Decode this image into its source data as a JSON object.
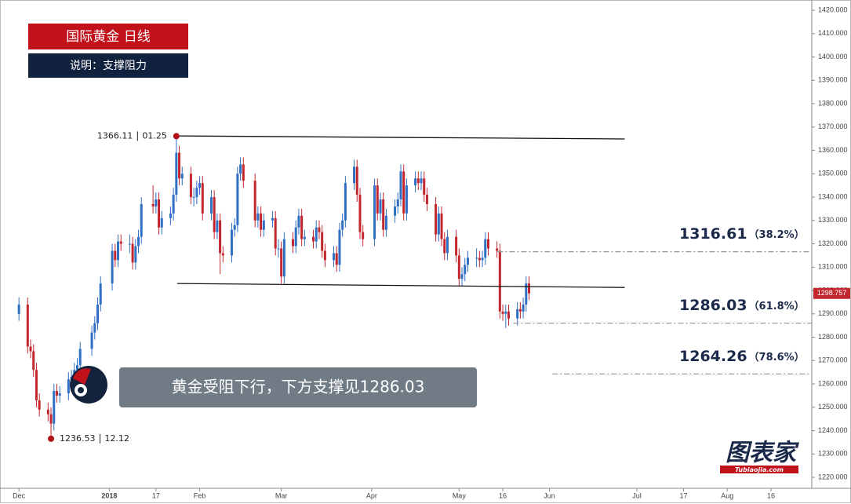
{
  "chart_data": {
    "type": "candlestick",
    "title": "国际黄金 日线",
    "subtitle": "说明：支撑阻力",
    "x": [
      0,
      3,
      4,
      5,
      6,
      7,
      10,
      11,
      12,
      13,
      14,
      17,
      18,
      19,
      20,
      21,
      25,
      26,
      27,
      28,
      32,
      33,
      34,
      35,
      38,
      39,
      40,
      41,
      42,
      46,
      47,
      48,
      49,
      52,
      53,
      54,
      55,
      56,
      59,
      60,
      61,
      62,
      63,
      66,
      67,
      68,
      69,
      70,
      73,
      74,
      75,
      76,
      77,
      81,
      82,
      83,
      84,
      87,
      88,
      89,
      90,
      91,
      94,
      95,
      96,
      97,
      98,
      101,
      102,
      103,
      104,
      105,
      108,
      109,
      110,
      111,
      112,
      115,
      116,
      117,
      118,
      122,
      123,
      124,
      125,
      126,
      129,
      130,
      131,
      132,
      133,
      136,
      137,
      138,
      139,
      140,
      143,
      144,
      145,
      146,
      147,
      150,
      151,
      152,
      153,
      154,
      157,
      158,
      159,
      160,
      161,
      164,
      165,
      166,
      167,
      168,
      171,
      172,
      173,
      174,
      175
    ],
    "open": [
      1290,
      1294,
      1276,
      1274,
      1266,
      1253,
      1249,
      1247,
      1243,
      1257,
      1255,
      1256,
      1262,
      1263,
      1266,
      1268,
      1275,
      1282,
      1286,
      1294,
      1303,
      1317,
      1313,
      1321,
      1320,
      1320,
      1312,
      1319,
      1323,
      1337,
      1336,
      1339,
      1327,
      1331,
      1333,
      1341,
      1359,
      1348,
      1350,
      1340,
      1340,
      1344,
      1346,
      1333,
      1340,
      1325,
      1330,
      1316,
      1315,
      1326,
      1328,
      1350,
      1354,
      1347,
      1330,
      1333,
      1326,
      1330,
      1331,
      1318,
      1318,
      1306,
      1322,
      1319,
      1327,
      1332,
      1322,
      1323,
      1321,
      1327,
      1325,
      1317,
      1313,
      1316,
      1311,
      1326,
      1330,
      1346,
      1353,
      1341,
      1325,
      1322,
      1345,
      1333,
      1339,
      1326,
      1332,
      1336,
      1339,
      1351,
      1333,
      1345,
      1348,
      1346,
      1348,
      1341,
      1337,
      1324,
      1333,
      1322,
      1316,
      1323,
      1315,
      1305,
      1307,
      1311,
      1314,
      1314,
      1313,
      1314,
      1322,
      1318,
      1317,
      1291,
      1290,
      1291,
      1288,
      1292,
      1291,
      1294,
      1303
    ],
    "high": [
      1297,
      1297,
      1279,
      1277,
      1269,
      1256,
      1252,
      1250,
      1260,
      1260,
      1259,
      1265,
      1266,
      1269,
      1271,
      1278,
      1285,
      1289,
      1297,
      1306,
      1320,
      1320,
      1324,
      1324,
      1324,
      1323,
      1322,
      1326,
      1340,
      1345,
      1342,
      1342,
      1334,
      1336,
      1344,
      1366.11,
      1362,
      1353,
      1353,
      1344,
      1347,
      1349,
      1349,
      1343,
      1343,
      1333,
      1333,
      1319,
      1329,
      1331,
      1353,
      1357,
      1357,
      1350,
      1336,
      1336,
      1333,
      1334,
      1334,
      1322,
      1321,
      1325,
      1325,
      1330,
      1335,
      1335,
      1326,
      1326,
      1330,
      1330,
      1328,
      1320,
      1319,
      1319,
      1329,
      1333,
      1349,
      1356,
      1356,
      1344,
      1328,
      1348,
      1348,
      1342,
      1342,
      1335,
      1339,
      1342,
      1354,
      1354,
      1348,
      1351,
      1351,
      1351,
      1351,
      1344,
      1340,
      1336,
      1336,
      1325,
      1326,
      1326,
      1318,
      1310,
      1314,
      1317,
      1318,
      1317,
      1317,
      1325,
      1325,
      1321,
      1320,
      1294,
      1294,
      1294,
      1295,
      1295,
      1297,
      1306,
      1306
    ],
    "low": [
      1287,
      1273,
      1271,
      1263,
      1250,
      1246,
      1244,
      1236.53,
      1240,
      1252,
      1252,
      1253,
      1259,
      1260,
      1263,
      1265,
      1272,
      1279,
      1283,
      1291,
      1300,
      1310,
      1310,
      1317,
      1316,
      1309,
      1309,
      1316,
      1320,
      1333,
      1333,
      1324,
      1324,
      1328,
      1330,
      1338,
      1345,
      1345,
      1337,
      1336,
      1337,
      1341,
      1330,
      1330,
      1322,
      1322,
      1307,
      1312,
      1312,
      1323,
      1325,
      1347,
      1344,
      1327,
      1327,
      1323,
      1323,
      1327,
      1315,
      1314,
      1303,
      1303,
      1316,
      1316,
      1324,
      1319,
      1319,
      1318,
      1318,
      1322,
      1314,
      1310,
      1310,
      1308,
      1308,
      1323,
      1327,
      1343,
      1338,
      1322,
      1319,
      1319,
      1330,
      1330,
      1323,
      1323,
      1329,
      1333,
      1336,
      1330,
      1330,
      1342,
      1343,
      1343,
      1338,
      1334,
      1321,
      1321,
      1319,
      1313,
      1313,
      1312,
      1302,
      1302,
      1304,
      1308,
      1310,
      1310,
      1310,
      1311,
      1315,
      1314,
      1288,
      1287,
      1284,
      1285,
      1285,
      1288,
      1288,
      1291,
      1296
    ],
    "close": [
      1294,
      1276,
      1274,
      1266,
      1253,
      1249,
      1247,
      1243,
      1257,
      1255,
      1256,
      1262,
      1263,
      1266,
      1268,
      1275,
      1282,
      1286,
      1294,
      1303,
      1317,
      1313,
      1321,
      1320,
      1320,
      1312,
      1319,
      1323,
      1337,
      1336,
      1339,
      1327,
      1331,
      1333,
      1341,
      1359,
      1348,
      1350,
      1340,
      1340,
      1344,
      1346,
      1333,
      1340,
      1325,
      1330,
      1316,
      1315,
      1326,
      1328,
      1350,
      1354,
      1347,
      1330,
      1333,
      1326,
      1330,
      1331,
      1318,
      1318,
      1306,
      1322,
      1319,
      1327,
      1332,
      1322,
      1323,
      1321,
      1327,
      1325,
      1317,
      1313,
      1316,
      1311,
      1326,
      1330,
      1346,
      1353,
      1341,
      1325,
      1322,
      1345,
      1333,
      1339,
      1326,
      1332,
      1336,
      1339,
      1351,
      1333,
      1345,
      1348,
      1346,
      1348,
      1341,
      1337,
      1324,
      1333,
      1322,
      1316,
      1323,
      1315,
      1305,
      1307,
      1311,
      1314,
      1314,
      1313,
      1314,
      1322,
      1318,
      1317,
      1291,
      1290,
      1291,
      1288,
      1292,
      1291,
      1294,
      1303,
      1298.757
    ],
    "up_color": "#2f6fc4",
    "down_color": "#c1272d",
    "xlim": [
      -6.5,
      272
    ],
    "xticks": [
      {
        "value": 0,
        "label": "Dec"
      },
      {
        "value": 31,
        "label": "2018"
      },
      {
        "value": 47,
        "label": "17"
      },
      {
        "value": 62,
        "label": "Feb"
      },
      {
        "value": 90,
        "label": "Mar"
      },
      {
        "value": 121,
        "label": "Apr"
      },
      {
        "value": 151,
        "label": "May"
      },
      {
        "value": 166,
        "label": "16"
      },
      {
        "value": 182,
        "label": "Jun"
      },
      {
        "value": 212,
        "label": "Jul"
      },
      {
        "value": 228,
        "label": "17"
      },
      {
        "value": 243,
        "label": "Aug"
      },
      {
        "value": 258,
        "label": "16"
      }
    ],
    "ylim": [
      1215.3,
      1424.4
    ],
    "yticks": [
      {
        "value": 1220,
        "label": "1220.000"
      },
      {
        "value": 1230,
        "label": "1230.000"
      },
      {
        "value": 1240,
        "label": "1240.000"
      },
      {
        "value": 1250,
        "label": "1250.000"
      },
      {
        "value": 1260,
        "label": "1260.000"
      },
      {
        "value": 1270,
        "label": "1270.000"
      },
      {
        "value": 1280,
        "label": "1280.000"
      },
      {
        "value": 1290,
        "label": "1290.000"
      },
      {
        "value": 1300,
        "label": "1300.000"
      },
      {
        "value": 1310,
        "label": "1310.000"
      },
      {
        "value": 1320,
        "label": "1320.000"
      },
      {
        "value": 1330,
        "label": "1330.000"
      },
      {
        "value": 1340,
        "label": "1340.000"
      },
      {
        "value": 1350,
        "label": "1350.000"
      },
      {
        "value": 1360,
        "label": "1360.000"
      },
      {
        "value": 1370,
        "label": "1370.000"
      },
      {
        "value": 1380,
        "label": "1380.000"
      },
      {
        "value": 1390,
        "label": "1390.000"
      },
      {
        "value": 1400,
        "label": "1400.000"
      },
      {
        "value": 1410,
        "label": "1410.000"
      },
      {
        "value": 1420,
        "label": "1420.000"
      }
    ],
    "grid": false,
    "last_price": 1298.757,
    "extremes": [
      {
        "x": 54,
        "value": 1366.11,
        "date": "01.25",
        "side": "left"
      },
      {
        "x": 11,
        "value": 1236.53,
        "date": "12.12",
        "side": "right"
      }
    ],
    "trend_lines": [
      {
        "x": [
          53.8,
          207.8
        ],
        "y": [
          1366.2,
          1364.9
        ]
      },
      {
        "x": [
          54.3,
          207.8
        ],
        "y": [
          1303,
          1301.3
        ]
      }
    ],
    "levels": [
      {
        "value": 1316.61,
        "ratio": "（38.2%）",
        "x_start": 164.2
      },
      {
        "value": 1286.03,
        "ratio": "（61.8%）",
        "x_start": 169.6
      },
      {
        "value": 1264.26,
        "ratio": "（78.6%）",
        "x_start": 183
      }
    ],
    "callout": "黄金受阻下行，下方支撑见1286.03",
    "watermark": {
      "name": "图表家",
      "url": "Tubiaojia.com"
    }
  }
}
